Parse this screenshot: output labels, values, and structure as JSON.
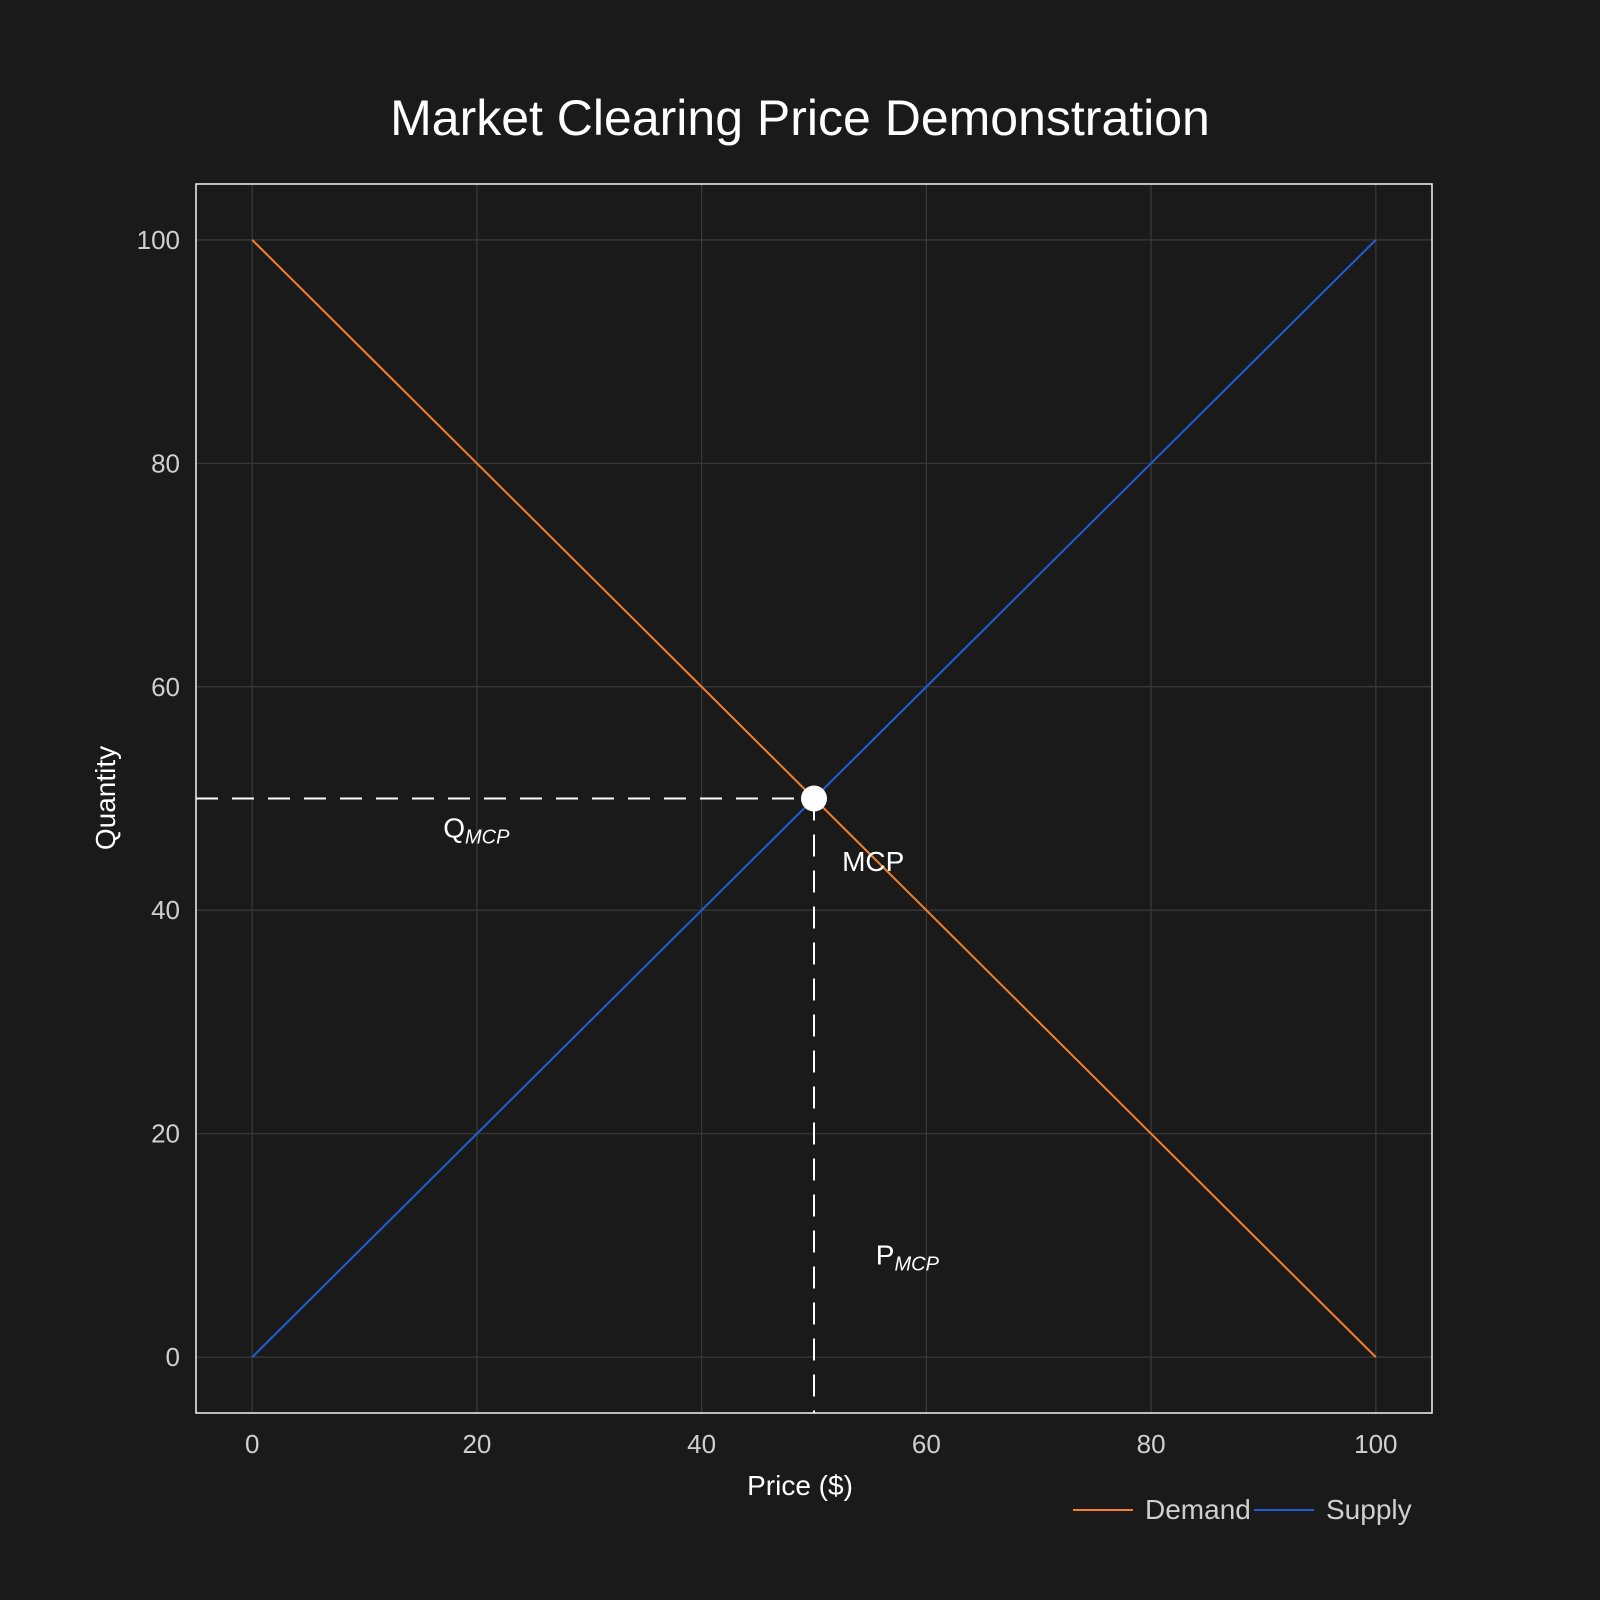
{
  "chart_data": {
    "type": "line",
    "title": "Market Clearing Price Demonstration",
    "xlabel": "Price ($)",
    "ylabel": "Quantity",
    "xlim": [
      -5,
      105
    ],
    "ylim": [
      -5,
      105
    ],
    "xticks": [
      0,
      20,
      40,
      60,
      80,
      100
    ],
    "yticks": [
      0,
      20,
      40,
      60,
      80,
      100
    ],
    "grid": true,
    "legend_position": "bottom-right",
    "series": [
      {
        "name": "Demand",
        "color": "#f5802a",
        "x": [
          0,
          100
        ],
        "y": [
          100,
          0
        ]
      },
      {
        "name": "Supply",
        "color": "#1f5fd6",
        "x": [
          0,
          100
        ],
        "y": [
          0,
          100
        ]
      }
    ],
    "equilibrium": {
      "x": 50,
      "y": 50,
      "color": "#ffffff"
    },
    "annotations": [
      {
        "text": "MCP",
        "sub": "",
        "x": 52.5,
        "y": 43.5
      },
      {
        "text": "Q",
        "sub": "MCP",
        "x": 17,
        "y": 46.5
      },
      {
        "text": "P",
        "sub": "MCP",
        "x": 55.5,
        "y": 8.3
      }
    ]
  }
}
